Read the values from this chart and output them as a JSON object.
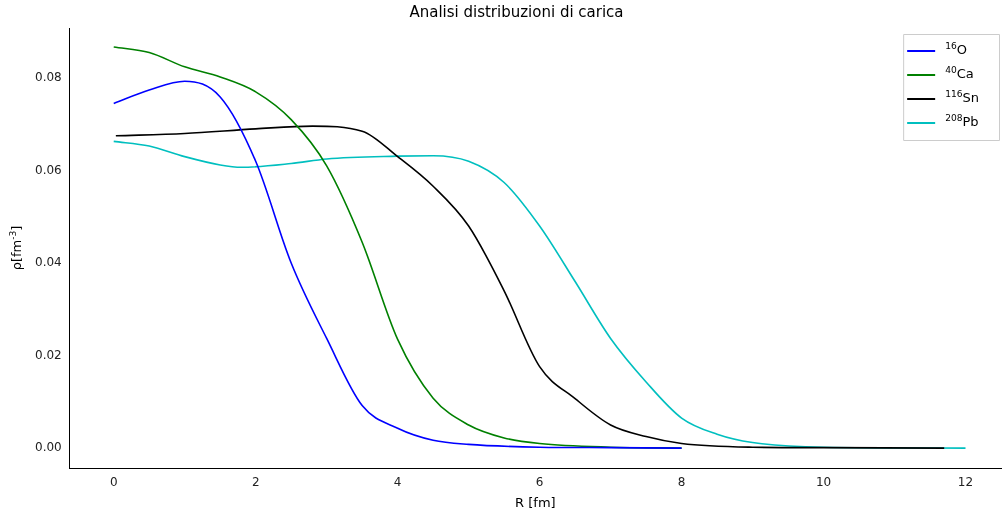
{
  "chart_data": {
    "type": "line",
    "title": "Analisi distribuzioni di carica",
    "xlabel": "R [fm]",
    "ylabel": "ρ[fm$^{-3}$]",
    "xlim": [
      -0.62,
      12.5
    ],
    "ylim": [
      -0.0043,
      0.0908
    ],
    "xticks": [
      0,
      2,
      4,
      6,
      8,
      10,
      12
    ],
    "yticks": [
      {
        "value": 0,
        "label": "0.00"
      },
      {
        "value": 0.02,
        "label": "0.02"
      },
      {
        "value": 0.04,
        "label": "0.04"
      },
      {
        "value": 0.06,
        "label": "0.06"
      },
      {
        "value": 0.08,
        "label": "0.08"
      }
    ],
    "grid": false,
    "legend": "top right",
    "marker": "none",
    "line_style": "solid",
    "series": [
      {
        "name": "$^{16}$O",
        "color": "#0000ff",
        "x": [
          0,
          0.5,
          1,
          1.5,
          2,
          2.5,
          3,
          3.5,
          4,
          4.5,
          5,
          6,
          7,
          8
        ],
        "values": [
          0.0745,
          0.0774,
          0.0793,
          0.0759,
          0.062,
          0.04,
          0.0237,
          0.0092,
          0.0043,
          0.0017,
          0.0008,
          0.0002,
          0.0001,
          0
        ]
      },
      {
        "name": "$^{40}$Ca",
        "color": "#008000",
        "x": [
          0,
          0.5,
          1,
          1.5,
          2,
          2.5,
          3,
          3.5,
          4,
          4.5,
          5,
          5.5,
          6,
          7,
          8
        ],
        "values": [
          0.0867,
          0.0855,
          0.0824,
          0.0802,
          0.077,
          0.071,
          0.061,
          0.0445,
          0.0235,
          0.0108,
          0.005,
          0.0022,
          0.001,
          0.0002,
          0
        ]
      },
      {
        "name": "$^{116}$Sn",
        "color": "#000000",
        "x": [
          0.03,
          1,
          2,
          2.8,
          3.5,
          4,
          4.5,
          5,
          5.5,
          6,
          6.5,
          7,
          7.5,
          8,
          9,
          10,
          11.7
        ],
        "values": [
          0.0675,
          0.068,
          0.069,
          0.0696,
          0.0685,
          0.063,
          0.0566,
          0.048,
          0.034,
          0.0176,
          0.0107,
          0.005,
          0.0025,
          0.001,
          0.0002,
          0.0001,
          0
        ]
      },
      {
        "name": "$^{208}$Pb",
        "color": "#00bfbf",
        "x": [
          0,
          0.5,
          1,
          1.5,
          1.8,
          2.5,
          3,
          4,
          4.5,
          5,
          5.5,
          6,
          6.5,
          7,
          7.5,
          8,
          8.5,
          9,
          10,
          12
        ],
        "values": [
          0.0663,
          0.0653,
          0.063,
          0.0612,
          0.0607,
          0.0615,
          0.0625,
          0.0631,
          0.0632,
          0.062,
          0.0574,
          0.048,
          0.036,
          0.0237,
          0.0143,
          0.0065,
          0.003,
          0.0012,
          0.0002,
          0
        ]
      }
    ]
  }
}
